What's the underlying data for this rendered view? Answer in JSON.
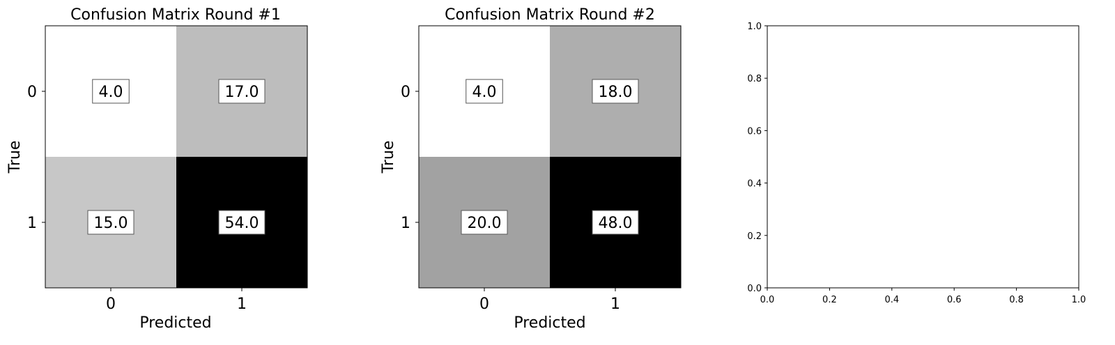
{
  "chart_data": [
    {
      "type": "heatmap",
      "title": "Confusion Matrix Round #1",
      "xlabel": "Predicted",
      "ylabel": "True",
      "x_categories": [
        "0",
        "1"
      ],
      "y_categories": [
        "0",
        "1"
      ],
      "values": [
        [
          4.0,
          17.0
        ],
        [
          15.0,
          54.0
        ]
      ],
      "value_labels": [
        [
          "4.0",
          "17.0"
        ],
        [
          "15.0",
          "54.0"
        ]
      ],
      "colormap": "grayscale-inverted",
      "grid": false
    },
    {
      "type": "heatmap",
      "title": "Confusion Matrix Round #2",
      "xlabel": "Predicted",
      "ylabel": "True",
      "x_categories": [
        "0",
        "1"
      ],
      "y_categories": [
        "0",
        "1"
      ],
      "values": [
        [
          4.0,
          18.0
        ],
        [
          20.0,
          48.0
        ]
      ],
      "value_labels": [
        [
          "4.0",
          "18.0"
        ],
        [
          "20.0",
          "48.0"
        ]
      ],
      "colormap": "grayscale-inverted",
      "grid": false
    },
    {
      "type": "scatter",
      "title": "",
      "xlabel": "",
      "ylabel": "",
      "xlim": [
        0.0,
        1.0
      ],
      "ylim": [
        0.0,
        1.0
      ],
      "x_ticks": [
        "0.0",
        "0.2",
        "0.4",
        "0.6",
        "0.8",
        "1.0"
      ],
      "y_ticks": [
        "0.0",
        "0.2",
        "0.4",
        "0.6",
        "0.8",
        "1.0"
      ],
      "series": [],
      "grid": false
    }
  ]
}
